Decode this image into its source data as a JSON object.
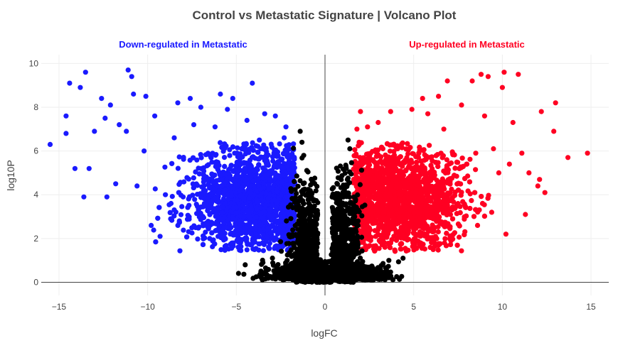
{
  "chart_data": {
    "type": "scatter",
    "title": "Control vs Metastatic Signature | Volcano Plot",
    "xlabel": "logFC",
    "ylabel": "log10P",
    "xlim": [
      -16,
      16
    ],
    "ylim": [
      -0.6,
      10.4
    ],
    "x_ticks": [
      -15,
      -10,
      -5,
      0,
      5,
      10,
      15
    ],
    "y_ticks": [
      0,
      2,
      4,
      6,
      8,
      10
    ],
    "grid": true,
    "annotations": [
      {
        "text": "Down-regulated in Metastatic",
        "x": -8,
        "y": 10.9,
        "color": "#1a1aff"
      },
      {
        "text": "Up-regulated in Metastatic",
        "x": 8,
        "y": 10.9,
        "color": "#ff0022"
      }
    ],
    "zero_line_x": 0,
    "zero_line_y": 0,
    "series": [
      {
        "color": "#1a1aff",
        "points": [
          [
            -15.5,
            6.3
          ],
          [
            -14.6,
            7.6
          ],
          [
            -14.4,
            9.1
          ],
          [
            -14.6,
            6.8
          ],
          [
            -13.8,
            8.9
          ],
          [
            -13.5,
            9.6
          ],
          [
            -13.3,
            5.2
          ],
          [
            -13.6,
            3.9
          ],
          [
            -14.1,
            5.2
          ],
          [
            -13.0,
            6.9
          ],
          [
            -12.6,
            8.4
          ],
          [
            -12.4,
            7.5
          ],
          [
            -12.1,
            8.1
          ],
          [
            -12.3,
            3.9
          ],
          [
            -11.8,
            4.5
          ],
          [
            -11.6,
            7.2
          ],
          [
            -11.2,
            6.9
          ],
          [
            -11.1,
            9.7
          ],
          [
            -10.9,
            9.4
          ],
          [
            -10.8,
            8.6
          ],
          [
            -10.6,
            4.4
          ],
          [
            -10.1,
            8.5
          ],
          [
            -10.2,
            6.0
          ],
          [
            -9.8,
            2.6
          ],
          [
            -9.6,
            7.6
          ],
          [
            -9.3,
            2.1
          ],
          [
            -9.0,
            4.0
          ],
          [
            -8.7,
            2.9
          ],
          [
            -8.5,
            6.6
          ],
          [
            -8.3,
            8.2
          ],
          [
            -8.0,
            3.9
          ],
          [
            -7.6,
            8.4
          ],
          [
            -7.4,
            7.2
          ],
          [
            -7.3,
            2.5
          ],
          [
            -7.0,
            8.0
          ],
          [
            -6.8,
            3.6
          ],
          [
            -6.5,
            2.0
          ],
          [
            -6.2,
            7.1
          ],
          [
            -5.9,
            8.6
          ],
          [
            -5.7,
            2.7
          ],
          [
            -5.5,
            7.9
          ],
          [
            -5.2,
            8.4
          ],
          [
            -4.9,
            2.3
          ],
          [
            -4.7,
            6.1
          ],
          [
            -4.4,
            7.4
          ],
          [
            -4.1,
            9.1
          ],
          [
            -3.9,
            2.2
          ],
          [
            -3.7,
            6.5
          ],
          [
            -3.4,
            7.7
          ],
          [
            -3.1,
            3.0
          ],
          [
            -2.8,
            7.6
          ],
          [
            -2.6,
            2.4
          ],
          [
            -2.3,
            6.6
          ],
          [
            -2.2,
            7.1
          ],
          [
            -2.1,
            5.3
          ],
          [
            -2.0,
            3.6
          ],
          [
            -2.1,
            2.1
          ]
        ],
        "cluster": {
          "count": 2200,
          "x_range": [
            -12.5,
            -1.6
          ],
          "y_range": [
            1.3,
            7.5
          ],
          "center_x": -4.0,
          "center_y": 3.8
        }
      },
      {
        "color": "#ff0022",
        "points": [
          [
            14.8,
            5.9
          ],
          [
            13.7,
            5.7
          ],
          [
            13.0,
            8.2
          ],
          [
            12.9,
            6.9
          ],
          [
            12.2,
            7.8
          ],
          [
            12.1,
            4.7
          ],
          [
            12.0,
            4.4
          ],
          [
            11.5,
            5.0
          ],
          [
            11.1,
            5.9
          ],
          [
            10.9,
            9.5
          ],
          [
            10.6,
            7.3
          ],
          [
            10.4,
            5.4
          ],
          [
            10.1,
            9.6
          ],
          [
            10.0,
            8.9
          ],
          [
            9.8,
            5.0
          ],
          [
            9.5,
            6.1
          ],
          [
            9.2,
            9.4
          ],
          [
            9.0,
            7.6
          ],
          [
            8.8,
            9.5
          ],
          [
            8.5,
            5.9
          ],
          [
            8.3,
            9.2
          ],
          [
            8.0,
            5.4
          ],
          [
            7.7,
            8.1
          ],
          [
            7.5,
            3.6
          ],
          [
            7.2,
            5.9
          ],
          [
            6.9,
            9.2
          ],
          [
            6.7,
            7.0
          ],
          [
            6.4,
            8.5
          ],
          [
            6.1,
            2.9
          ],
          [
            5.8,
            7.7
          ],
          [
            5.5,
            8.4
          ],
          [
            5.2,
            3.2
          ],
          [
            4.9,
            7.9
          ],
          [
            4.5,
            5.5
          ],
          [
            4.1,
            6.1
          ],
          [
            3.7,
            7.8
          ],
          [
            3.4,
            2.2
          ],
          [
            3.0,
            7.3
          ],
          [
            2.7,
            5.6
          ],
          [
            2.4,
            7.1
          ],
          [
            2.0,
            7.8
          ],
          [
            1.8,
            7.0
          ],
          [
            1.7,
            2.4
          ],
          [
            10.2,
            2.2
          ],
          [
            11.3,
            3.1
          ],
          [
            12.4,
            4.1
          ],
          [
            9.4,
            3.2
          ],
          [
            8.6,
            2.6
          ],
          [
            7.1,
            1.9
          ],
          [
            6.3,
            2.0
          ]
        ],
        "cluster": {
          "count": 2300,
          "x_range": [
            1.5,
            11.5
          ],
          "y_range": [
            1.3,
            7.4
          ],
          "center_x": 4.2,
          "center_y": 3.8
        }
      },
      {
        "color": "#000000",
        "points": [
          [
            -1.4,
            6.9
          ],
          [
            -1.3,
            6.4
          ],
          [
            -1.2,
            5.8
          ],
          [
            1.3,
            6.5
          ],
          [
            1.4,
            6.1
          ],
          [
            1.2,
            5.2
          ],
          [
            -1.7,
            1.3
          ],
          [
            1.6,
            1.4
          ],
          [
            -3.5,
            0.9
          ],
          [
            3.6,
            1.0
          ],
          [
            -4.5,
            0.8
          ],
          [
            4.4,
            1.1
          ],
          [
            -2.6,
            0.4
          ],
          [
            2.8,
            0.5
          ],
          [
            -0.3,
            0.0
          ],
          [
            0.2,
            0.1
          ]
        ],
        "cluster": {
          "count": 2600,
          "x_range": [
            -5.5,
            5.5
          ],
          "y_range": [
            0.0,
            6.8
          ],
          "center_x": 0.0,
          "center_y": 0.6
        }
      }
    ]
  }
}
